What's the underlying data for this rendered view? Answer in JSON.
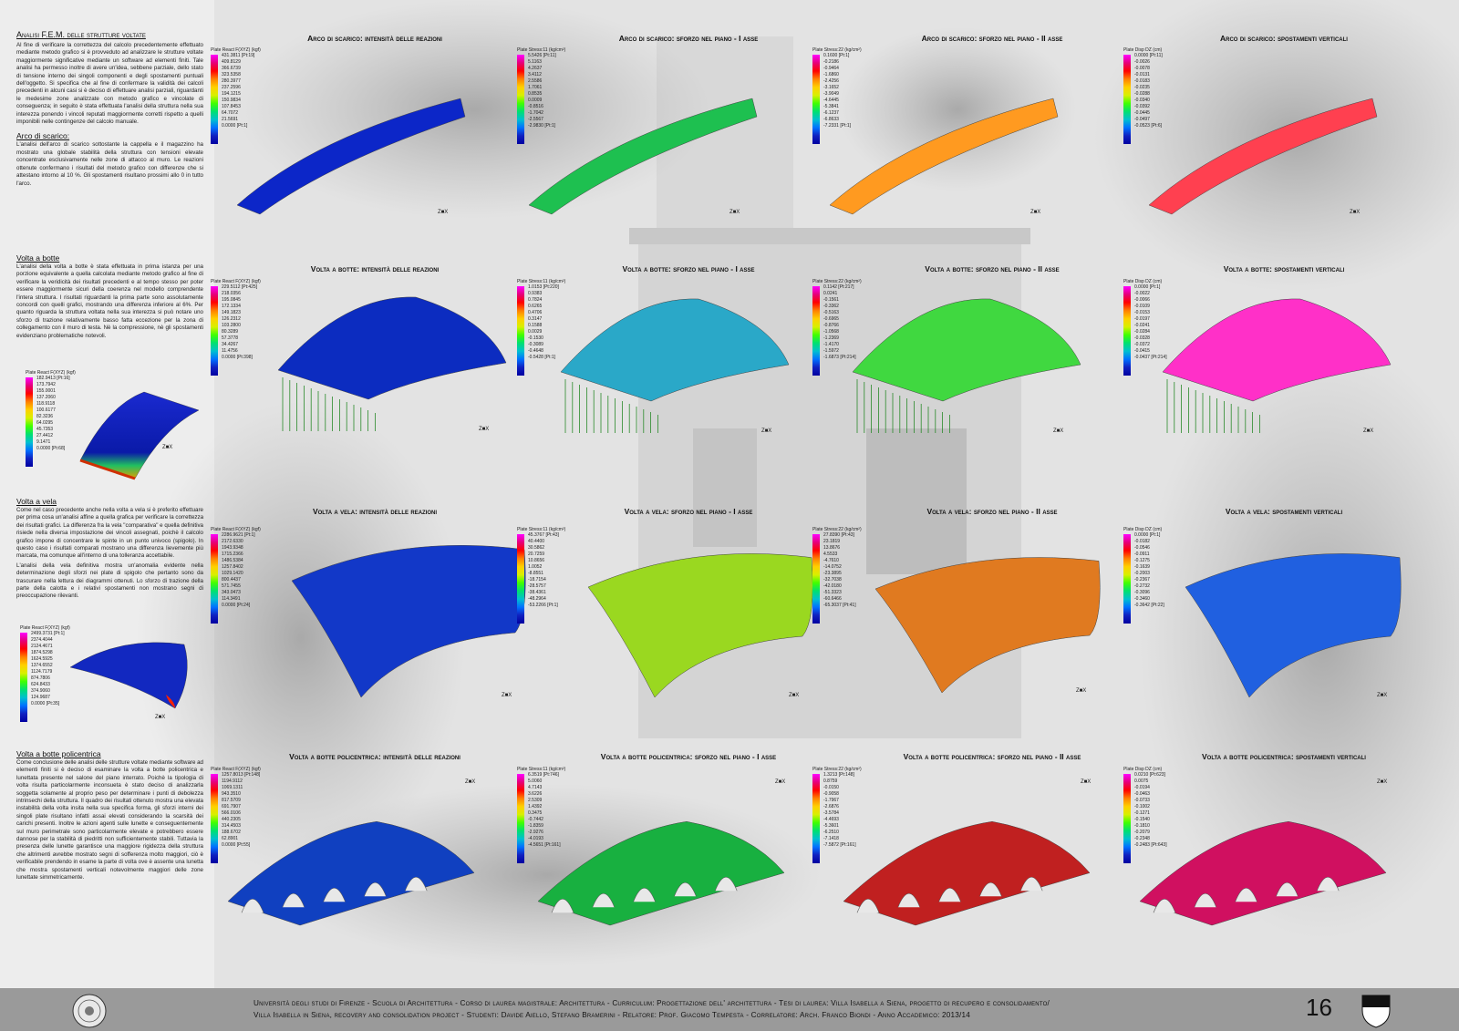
{
  "left": {
    "main_title": "Analisi F.E.M. delle strutture voltate",
    "intro": "Al fine di verificare la correttezza del calcolo precedentemente effettuato mediante metodo grafico si è provveduto ad analizzare le strutture voltate maggiormente significative mediante un software ad elementi finiti. Tale analisi ha permesso inoltre di avere un'idea, sebbene parziale, dello stato di tensione interno dei singoli componenti e degli spostamenti puntuali dell'oggetto. Si specifica che al fine di confermare la validità dei calcoli precedenti in alcuni casi si è deciso di effettuare analisi parziali, riguardanti le medesime zone analizzate con metodo grafico e vincolate di conseguenza; in seguito è stata effettuata l'analisi della struttura nella sua interezza ponendo i vincoli reputati maggiormente corretti rispetto a quelli imponibili nelle contingenze del calcolo manuale.",
    "sec1_title": "Arco di scarico:",
    "sec1_text": "L'analisi dell'arco di scarico sottostante la cappella e il magazzino ha mostrato una globale stabilità della struttura con tensioni elevate concentrate esclusivamente nelle zone di attacco al muro. Le reazioni ottenute confermano i risultati del metodo grafico con differenze che si attestano intorno al 10 %. Gli spostamenti risultano prossimi allo 0 in tutto l'arco.",
    "sec2_title": "Volta a botte",
    "sec2_text": "L'analisi della volta a botte è stata effettuata in prima istanza per una porzione equivalente a quella calcolata mediante metodo grafico al fine di verificare la veridicità dei risultati precedenti e al tempo stesso per poter essere maggiormente sicuri della coerenza nel modello comprendente l'intera struttura. I risultati riguardanti la prima parte sono assolutamente concordi con quelli grafici, mostrando una differenza inferiore al 6%. Per quanto riguarda la struttura voltata nella sua interezza si può notare uno sforzo di trazione relativamente basso fatta eccezione per la zona di collegamento con il muro di testa. Nè la compressione, nè gli spostamenti evidenziano problematiche notevoli.",
    "sec3_title": "Volta a vela",
    "sec3_text": "Come nel caso precedente anche nella volta a vela si è preferito effettuare per prima cosa un'analisi affine a quella grafica per verificare la correttezza dei risultati grafici. La differenza fra la vela \"comparativa\" e quella definitiva risiede nella diversa impostazione dei vincoli assegnati, poichè il calcolo grafico impone di concentrare le spinte in un punto univoco (spigolo). In questo caso i risultati comparati mostrano una differenza lievemente più marcata, ma comunque all'interno di una tolleranza accettabile.",
    "sec3_text2": "L'analisi della vela definitiva mostra un'anomalia evidente nella determinazione degli sforzi nei plate di spigolo che pertanto sono da trascurare nella lettura dei diagrammi ottenuti. Lo sforzo di trazione della parte della calotta e i relativi spostamenti non mostrano segni di preoccupazione rilevanti.",
    "sec4_title": "Volta a botte policentrica",
    "sec4_text": "Come conclusione delle analisi delle strutture voltate mediante software ad elementi finiti si è deciso di esaminare la volta a botte policentrica e lunettata presente nel salone del piano interrato. Poichè la tipologia di volta risulta particolarmente inconsueta è stato deciso di analizzarla soggetta solamente al proprio peso per determinare i punti di debolezza intrinsechi della struttura. Il quadro dei risultati ottenuto mostra una elevata instabilità della volta insita nella sua specifica forma, gli sforzi interni dei singoli plate risultano infatti assai elevati considerando la scarsità dei carichi presenti. Inoltre le azioni agenti sulle lunette e conseguentemente sul muro perimetrale sono particolarmente elevate e potrebbero essere dannose per la stabilità di piedritti non sufficientemente stabili. Tuttavia la presenza delle lunette garantisce una maggiore rigidezza della struttura che altrimenti avrebbe mostrato segni di sofferenza molto maggiori, ciò è verificabile prendendo in esame la parte di volta ove è assente una lunetta che mostra spostamenti verticali notevolmente maggiori delle zone lunettate simmetricamente."
  },
  "rows": [
    {
      "titles": [
        "Arco di scarico: intensità delle reazioni",
        "Arco di scarico: sforzo nel piano - I asse",
        "Arco di scarico: sforzo nel piano - II asse",
        "Arco di scarico: spostamenti verticali"
      ],
      "legends": [
        {
          "title": "Plate React F(XYZ) (kgf)",
          "values": [
            "431.3811 [Pt:19]",
            "409.8129",
            "366.6739",
            "323.5358",
            "280.3977",
            "237.2596",
            "194.1215",
            "150.9834",
            "107.8453",
            "64.7072",
            "21.5691",
            "0.0000 [Pt:1]"
          ]
        },
        {
          "title": "Plate Stress:11 (kg/cm²)",
          "values": [
            "5.5426 [Pt:11]",
            "5.1163",
            "4.2637",
            "3.4112",
            "2.5586",
            "1.7061",
            "0.8535",
            "0.0009",
            "-0.8516",
            "-1.7042",
            "-2.5567",
            "-2.9830 [Pt:1]"
          ]
        },
        {
          "title": "Plate Stress:22 (kg/cm²)",
          "values": [
            "0.1600 [Pt:1]",
            "-0.2186",
            "-0.9464",
            "-1.6860",
            "-2.4256",
            "-3.1652",
            "-3.9049",
            "-4.6445",
            "-5.3841",
            "-6.1237",
            "-6.8633",
            "-7.2331 [Pt:1]"
          ]
        },
        {
          "title": "Plate Disp DZ (cm)",
          "values": [
            "0.0000 [Pt:11]",
            "-0.0026",
            "-0.0078",
            "-0.0131",
            "-0.0183",
            "-0.0235",
            "-0.0288",
            "-0.0340",
            "-0.0392",
            "-0.0445",
            "-0.0497",
            "-0.0523 [Pt:6]"
          ]
        }
      ]
    },
    {
      "titles": [
        "Volta a botte: intensità delle reazioni",
        "Volta a botte: sforzo nel piano - I asse",
        "Volta a botte: sforzo nel piano - II asse",
        "Volta a botte: spostamenti verticali"
      ],
      "legends": [
        {
          "title": "Plate React F(XYZ) (kgf)",
          "values": [
            "229.5112 [Pt:425]",
            "218.0356",
            "195.0845",
            "172.1334",
            "149.1823",
            "126.2312",
            "103.2800",
            "80.3289",
            "57.3778",
            "34.4267",
            "11.4756",
            "0.0000 [Pt:398]"
          ]
        },
        {
          "title": "Plate Stress:11 (kg/cm²)",
          "values": [
            "1.0153 [Pt:220]",
            "0.9383",
            "0.7824",
            "0.6265",
            "0.4706",
            "0.3147",
            "0.1588",
            "0.0029",
            "-0.1530",
            "-0.3089",
            "-0.4648",
            "-0.5428 [Pt:1]"
          ]
        },
        {
          "title": "Plate Stress:22 (kg/cm²)",
          "values": [
            "0.1142 [Pt:217]",
            "0.0241",
            "-0.1561",
            "-0.3362",
            "-0.5163",
            "-0.6965",
            "-0.8766",
            "-1.0568",
            "-1.2369",
            "-1.4170",
            "-1.5972",
            "-1.6873 [Pt:214]"
          ]
        },
        {
          "title": "Plate Disp DZ (cm)",
          "values": [
            "0.0000 [Pt:1]",
            "-0.0022",
            "-0.0066",
            "-0.0109",
            "-0.0153",
            "-0.0197",
            "-0.0241",
            "-0.0284",
            "-0.0328",
            "-0.0372",
            "-0.0415",
            "-0.0437 [Pt:214]"
          ]
        }
      ]
    },
    {
      "titles": [
        "Volta a vela: intensità delle reazioni",
        "Volta a vela: sforzo nel piano - I asse",
        "Volta a vela: sforzo nel piano - II asse",
        "Volta a vela: spostamenti verticali"
      ],
      "legends": [
        {
          "title": "Plate React F(XYZ) (kgf)",
          "values": [
            "2286.9621 [Pt:1]",
            "2172.6330",
            "1943.9348",
            "1715.2366",
            "1486.5384",
            "1257.8402",
            "1029.1420",
            "800.4437",
            "571.7455",
            "343.0473",
            "114.3491",
            "0.0000 [Pt:24]"
          ]
        },
        {
          "title": "Plate Stress:11 (kg/cm²)",
          "values": [
            "45.3767 [Pt:43]",
            "40.4400",
            "30.5862",
            "20.7259",
            "10.8656",
            "1.0052",
            "-8.8551",
            "-18.7154",
            "-28.5757",
            "-38.4361",
            "-48.2964",
            "-53.2266 [Pt:1]"
          ]
        },
        {
          "title": "Plate Stress:22 (kg/cm²)",
          "values": [
            "27.8390 [Pt:43]",
            "23.1819",
            "13.8676",
            "4.5533",
            "-4.7610",
            "-14.0752",
            "-23.3895",
            "-32.7038",
            "-42.0180",
            "-51.3323",
            "-60.6466",
            "-65.3037 [Pt:41]"
          ]
        },
        {
          "title": "Plate Disp DZ (cm)",
          "values": [
            "0.0000 [Pt:1]",
            "-0.0182",
            "-0.0546",
            "-0.0911",
            "-0.1275",
            "-0.1639",
            "-0.2003",
            "-0.2367",
            "-0.2732",
            "-0.3096",
            "-0.3460",
            "-0.3642 [Pt:22]"
          ]
        }
      ]
    },
    {
      "titles": [
        "Volta a botte policentrica: intensità delle reazioni",
        "Volta a botte policentrica: sforzo nel piano - I asse",
        "Volta a botte policentrica: sforzo nel piano - II asse",
        "Volta a botte policentrica: spostamenti verticali"
      ],
      "legends": [
        {
          "title": "Plate React F(XYZ) (kgf)",
          "values": [
            "1257.8013 [Pt:148]",
            "1194.9112",
            "1069.1311",
            "943.3510",
            "817.5709",
            "691.7907",
            "566.0106",
            "440.2305",
            "314.4503",
            "188.6702",
            "62.8901",
            "0.0000 [Pt:55]"
          ]
        },
        {
          "title": "Plate Stress:11 (kg/cm²)",
          "values": [
            "6.3519 [Pt:746]",
            "5.0060",
            "4.7143",
            "3.6226",
            "2.5309",
            "1.4392",
            "0.3475",
            "-0.7442",
            "-1.8359",
            "-2.9276",
            "-4.0193",
            "-4.5651 [Pt:161]"
          ]
        },
        {
          "title": "Plate Stress:22 (kg/cm²)",
          "values": [
            "1.3213 [Pt:148]",
            "0.8759",
            "-0.0150",
            "-0.9058",
            "-1.7967",
            "-2.6876",
            "-3.5784",
            "-4.4693",
            "-5.3601",
            "-6.2510",
            "-7.1418",
            "-7.5872 [Pt:161]"
          ]
        },
        {
          "title": "Plate Disp DZ (cm)",
          "values": [
            "0.0210 [Pt:623]",
            "0.0075",
            "-0.0194",
            "-0.0463",
            "-0.0733",
            "-0.1002",
            "-0.1271",
            "-0.1540",
            "-0.1810",
            "-0.2079",
            "-0.2348",
            "-0.2483 [Pt:643]"
          ]
        }
      ]
    }
  ],
  "small_legends": [
    {
      "title": "Plate React F(XYZ) (kgf)",
      "values": [
        "182.9413 [Pt:16]",
        "173.7942",
        "155.0001",
        "137.2060",
        "118.9118",
        "100.6177",
        "82.3236",
        "64.0295",
        "45.7353",
        "27.4412",
        "9.1471",
        "0.0000 [Pt:68]"
      ]
    },
    {
      "title": "Plate React F(XYZ) (kgf)",
      "values": [
        "2499.3731 [Pt:1]",
        "2374.4044",
        "2124.4671",
        "1874.5298",
        "1624.5925",
        "1374.6552",
        "1124.7179",
        "874.7806",
        "624.8433",
        "374.9060",
        "124.9687",
        "0.0000 [Pt:35]"
      ]
    }
  ],
  "colors": {
    "scale": [
      "#ff00ff",
      "#e6007a",
      "#ff0000",
      "#ff8000",
      "#ffd000",
      "#d8f000",
      "#40ff00",
      "#00e070",
      "#00c0d0",
      "#0070ff",
      "#1020c0",
      "#0000a0"
    ]
  },
  "footer": {
    "line1": "Università degli studi di Firenze - Scuola di Architettura - Corso di laurea magistrale: Architettura - Curriculum: Progettazione dell' architettura - Tesi di laurea: Villa Isabella a Siena, progetto di recupero e consolidamento/",
    "line2": "Villa Isabella in Siena, recovery and consolidation project - Studenti: Davide Aiello, Stefano Bramerini - Relatore: Prof. Giacomo Tempesta - Correlatore: Arch. Franco Biondi - Anno Accademico: 2013/14",
    "page": "16"
  },
  "axis": {
    "x": "X",
    "y": "Y",
    "z": "Z"
  }
}
